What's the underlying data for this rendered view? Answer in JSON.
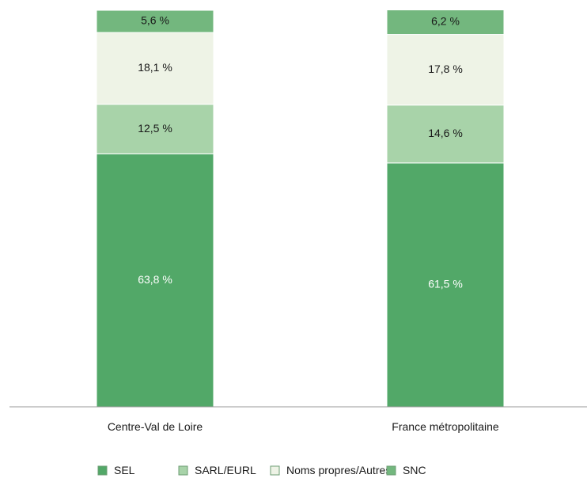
{
  "chart_data": {
    "type": "bar",
    "stacked": true,
    "categories": [
      "Centre-Val de Loire",
      "France métropolitaine"
    ],
    "series": [
      {
        "name": "SEL",
        "values": [
          63.8,
          61.5
        ],
        "labels": [
          "63,8 %",
          "61,5 %"
        ],
        "color": "#52a868",
        "label_color": "#ffffff"
      },
      {
        "name": "SARL/EURL",
        "values": [
          12.5,
          14.6
        ],
        "labels": [
          "12,5 %",
          "14,6 %"
        ],
        "color": "#a8d3a9",
        "label_color": "#1a1a1a"
      },
      {
        "name": "Noms propres/Autres",
        "values": [
          18.1,
          17.8
        ],
        "labels": [
          "18,1 %",
          "17,8 %"
        ],
        "color": "#eef3e6",
        "label_color": "#1a1a1a"
      },
      {
        "name": "SNC",
        "values": [
          5.6,
          6.2
        ],
        "labels": [
          "5,6 %",
          "6,2 %"
        ],
        "color": "#73b77e",
        "label_color": "#1a1a1a"
      }
    ],
    "title": "",
    "xlabel": "",
    "ylabel": "",
    "ylim": [
      0,
      100
    ],
    "grid": false,
    "legend_position": "bottom"
  }
}
